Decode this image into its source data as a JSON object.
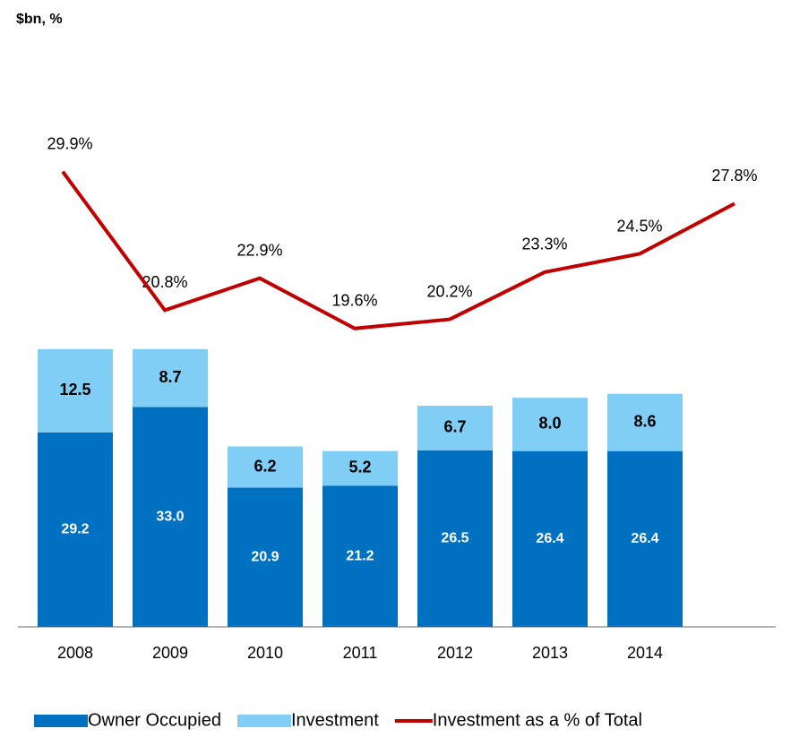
{
  "chart_data": {
    "type": "bar+line",
    "title": "$bn, %",
    "categories": [
      "2008",
      "2009",
      "2010",
      "2011",
      "2012",
      "2013",
      "2014",
      null
    ],
    "series": [
      {
        "name": "Owner Occupied",
        "color": "#0070c0",
        "type": "bar",
        "values": [
          29.2,
          33.0,
          20.9,
          21.2,
          26.5,
          26.4,
          26.4,
          null
        ],
        "value_labels": [
          "29.2",
          "33.0",
          "20.9",
          "21.2",
          "26.5",
          "26.4",
          "26.4",
          null
        ]
      },
      {
        "name": "Investment",
        "color": "#80cdf5",
        "type": "bar",
        "values": [
          12.5,
          8.7,
          6.2,
          5.2,
          6.7,
          8.0,
          8.6,
          null
        ],
        "value_labels": [
          "12.5",
          "8.7",
          "6.2",
          "5.2",
          "6.7",
          "8.0",
          "8.6",
          null
        ]
      },
      {
        "name": "Investment as a % of Total",
        "color": "#c00000",
        "type": "line",
        "axis": "y2",
        "values": [
          29.9,
          20.8,
          22.9,
          19.6,
          20.2,
          23.3,
          24.5,
          27.8
        ],
        "value_labels": [
          "29.9%",
          "20.8%",
          "22.9%",
          "19.6%",
          "20.2%",
          "23.3%",
          "24.5%",
          "27.8%"
        ]
      }
    ],
    "ylim": [
      0,
      80
    ],
    "y2lim": [
      0,
      35
    ],
    "legend": "bottom"
  }
}
